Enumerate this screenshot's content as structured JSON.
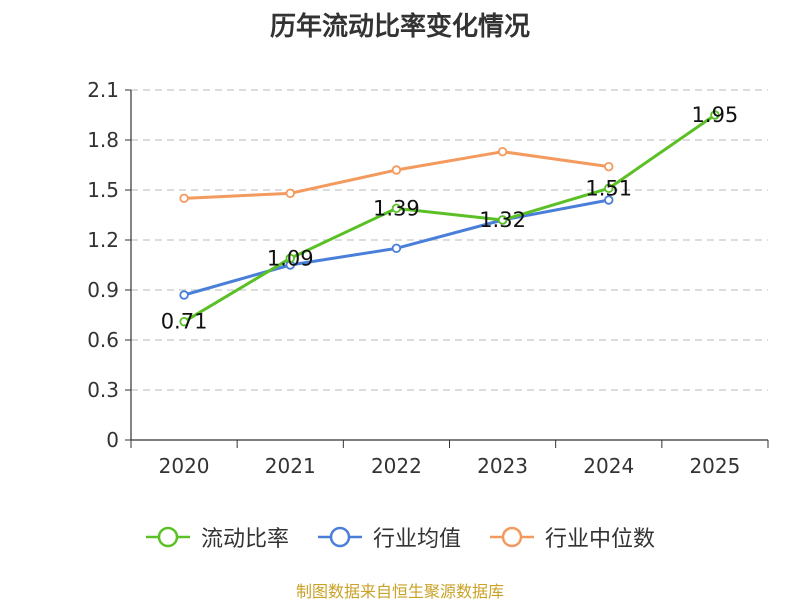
{
  "title": "历年流动比率变化情况",
  "source": "制图数据来自恒生聚源数据库",
  "chart_data": {
    "type": "line",
    "title": "历年流动比率变化情况",
    "categories": [
      "2020",
      "2021",
      "2022",
      "2023",
      "2024",
      "2025"
    ],
    "ylim": [
      0,
      2.1
    ],
    "yticks": [
      "0",
      "0.3",
      "0.6",
      "0.9",
      "1.2",
      "1.5",
      "1.8",
      "2.1"
    ],
    "grid": true,
    "legend_position": "bottom",
    "series": [
      {
        "name": "流动比率",
        "color": "#5bc026",
        "values": [
          0.71,
          1.09,
          1.39,
          1.32,
          1.51,
          1.95
        ],
        "labels": [
          "0.71",
          "1.09",
          "1.39",
          "1.32",
          "1.51",
          "1.95"
        ]
      },
      {
        "name": "行业均值",
        "color": "#4a7fd9",
        "values": [
          0.87,
          1.05,
          1.15,
          1.32,
          1.44,
          null
        ]
      },
      {
        "name": "行业中位数",
        "color": "#f39a5e",
        "values": [
          1.45,
          1.48,
          1.62,
          1.73,
          1.64,
          null
        ]
      }
    ]
  }
}
